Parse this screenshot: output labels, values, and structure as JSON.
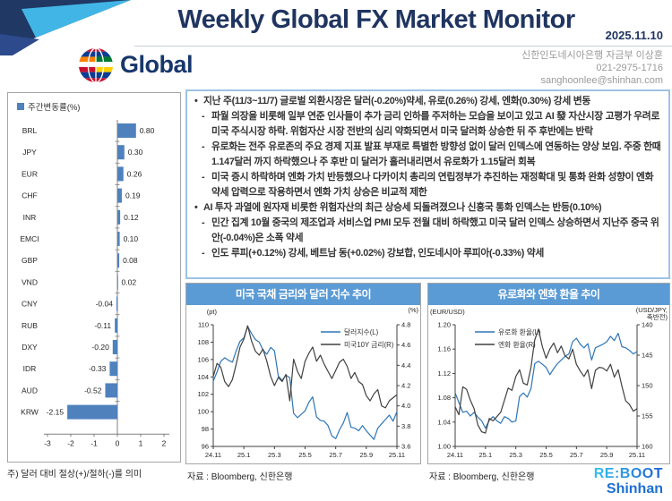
{
  "header": {
    "title": "Weekly Global FX Market Monitor",
    "date": "2025.11.10",
    "brand": "Global",
    "contact_lines": [
      "신한인도네시아은행 자금부 이상훈",
      "021-2975-1716",
      "sanghoonlee@shinhan.com"
    ]
  },
  "summary": {
    "bullets": [
      {
        "level": 1,
        "text": "지난 주(11/3~11/7) 글로벌 외환시장은 달러(-0.20%)약세, 유로(0.26%) 강세, 엔화(0.30%) 강세 변동"
      },
      {
        "level": 2,
        "text": "파월 의장을 비롯해 일부 연준 인사들이 추가 금리 인하를 주저하는 모습을 보이고 있고 AI 發 자산시장 고평가 우려로 미국 주식시장 하락. 위험자산 시장 전반의 심리 약화되면서 미국 달러화 상승한 뒤 주 후반에는 반락"
      },
      {
        "level": 2,
        "text": "유로화는 전주 유로존의 주요 경제 지표 발표 부재로 특별한 방향성 없이 달러 인덱스에 연동하는 양상 보임. 주중 한때 1.147달러 까지 하락했으나 주 후반 미 달러가 흘러내리면서 유로화가 1.15달러 회복"
      },
      {
        "level": 2,
        "text": "미국 증시 하락하며 엔화 가치 반등했으나 다카이치 총리의 연립정부가 추진하는 재정확대 및 통화 완화 성향이 엔화 약세 압력으로 작용하면서 엔화 가치 상승은 비교적 제한"
      },
      {
        "level": 1,
        "text": "AI 투자 과열에 원자재 비롯한 위험자산의 최근 상승세 되돌려졌으나 신흥국  통화 인덱스는 반등(0.10%)"
      },
      {
        "level": 2,
        "text": "민간 집계 10월 중국의 제조업과 서비스업 PMI 모두 전월 대비 하락했고 미국 달러 인덱스 상승하면서 지난주 중국 위안(-0.04%)은 소폭 약세"
      },
      {
        "level": 2,
        "text": "인도 루피(+0.12%) 강세, 베트남 동(+0.02%) 강보합, 인도네시아 루피아(-0.33%) 약세"
      }
    ]
  },
  "footer_logo": {
    "line1": "RE:BOOT",
    "line2": "Shinhan"
  },
  "colors": {
    "navy": "#1F3460",
    "header_band": "#5B9BD5",
    "bar_fill": "#4F81BD",
    "line_blue": "#2E75B6",
    "line_black": "#404040",
    "box_border": "#9DC3E6"
  },
  "chart_data": [
    {
      "type": "bar",
      "orientation": "horizontal",
      "legend": "주간변동률(%)",
      "note": "주) 달러 대비 절상(+)/절하(-)를 의미",
      "categories": [
        "BRL",
        "JPY",
        "EUR",
        "CHF",
        "INR",
        "EMCI",
        "GBP",
        "VND",
        "CNY",
        "RUB",
        "DXY",
        "IDR",
        "AUD",
        "KRW"
      ],
      "values": [
        0.8,
        0.3,
        0.26,
        0.19,
        0.12,
        0.1,
        0.08,
        0.02,
        -0.04,
        -0.11,
        -0.2,
        -0.33,
        -0.52,
        -2.15
      ],
      "value_labels": [
        "0.80",
        "0.30",
        "0.26",
        "0.19",
        "0.12",
        "0.10",
        "0.08",
        "0.02",
        "-0.04",
        "-0.11",
        "-0.20",
        "-0.33",
        "-0.52",
        "-2.15"
      ],
      "xlim": [
        -3,
        2
      ],
      "xtick_labels": [
        "-3",
        "-2",
        "-1",
        "0",
        "1",
        "2"
      ],
      "bar_color": "#4F81BD"
    },
    {
      "type": "line",
      "title": "미국 국채 금리와 달러 지수 추이",
      "source": "자료 : Bloomberg, 신한은행",
      "x_labels": [
        "24.11",
        "25.1",
        "25.3",
        "25.5",
        "25.7",
        "25.9",
        "25.11"
      ],
      "left_axis": {
        "unit_lines": [
          "(pt)"
        ],
        "min": 96,
        "max": 110,
        "tick_values": [
          96,
          98,
          100,
          102,
          104,
          106,
          108,
          110
        ],
        "tick_labels": [
          "96",
          "98",
          "100",
          "102",
          "104",
          "106",
          "108",
          "110"
        ],
        "reversed": false
      },
      "right_axis": {
        "unit_lines": [
          "(%)"
        ],
        "min": 3.6,
        "max": 4.8,
        "tick_values": [
          3.6,
          3.8,
          4.0,
          4.2,
          4.4,
          4.6,
          4.8
        ],
        "tick_labels": [
          "3.6",
          "3.8",
          "4.0",
          "4.2",
          "4.4",
          "4.6",
          "4.8"
        ],
        "reversed": false
      },
      "legend_pos": {
        "x": 150,
        "y": 30
      },
      "rmargin": 26,
      "series": [
        {
          "name": "달러지수(L)",
          "axis": "left",
          "color": "#2E75B6",
          "values": [
            103.5,
            104.6,
            105.8,
            106.2,
            105.9,
            105.7,
            107.0,
            108.1,
            108.5,
            109.8,
            109.0,
            108.3,
            108.0,
            107.1,
            106.6,
            107.4,
            107.0,
            104.1,
            103.6,
            104.2,
            103.9,
            99.8,
            99.3,
            99.7,
            100.1,
            101.1,
            101.7,
            99.4,
            99.0,
            98.9,
            98.4,
            97.2,
            96.9,
            97.9,
            98.7,
            99.9,
            98.2,
            98.1,
            97.8,
            98.4,
            97.8,
            97.3,
            96.8,
            98.1,
            98.6,
            99.1,
            99.6,
            98.9,
            100.0
          ]
        },
        {
          "name": "미국10Y 금리(R)",
          "axis": "right",
          "color": "#404040",
          "values": [
            4.29,
            4.42,
            4.38,
            4.24,
            4.19,
            4.26,
            4.41,
            4.58,
            4.66,
            4.79,
            4.64,
            4.54,
            4.5,
            4.56,
            4.44,
            4.29,
            4.2,
            4.28,
            4.24,
            4.31,
            4.05,
            4.46,
            4.34,
            4.27,
            4.44,
            4.52,
            4.58,
            4.44,
            4.5,
            4.41,
            4.34,
            4.27,
            4.35,
            4.43,
            4.46,
            4.39,
            4.27,
            4.33,
            4.24,
            4.21,
            4.1,
            4.05,
            4.12,
            4.16,
            4.0,
            3.98,
            4.05,
            4.08,
            4.11
          ]
        }
      ]
    },
    {
      "type": "line",
      "title": "유로화와 엔화 환율 추이",
      "source": "자료 : Bloomberg, 신한은행",
      "x_labels": [
        "24.11",
        "25.1",
        "25.3",
        "25.5",
        "25.7",
        "25.9",
        "25.11"
      ],
      "left_axis": {
        "unit_lines": [
          "(EUR/USD)"
        ],
        "min": 1.0,
        "max": 1.2,
        "tick_values": [
          1.0,
          1.04,
          1.08,
          1.12,
          1.16,
          1.2
        ],
        "tick_labels": [
          "1.00",
          "1.04",
          "1.08",
          "1.12",
          "1.16",
          "1.20"
        ],
        "reversed": false
      },
      "right_axis": {
        "unit_lines": [
          "(USD/JPY,",
          "축반전)"
        ],
        "min": 140,
        "max": 160,
        "tick_values": [
          140,
          145,
          150,
          155,
          160
        ],
        "tick_labels": [
          "140",
          "145",
          "150",
          "155",
          "160"
        ],
        "reversed": true
      },
      "legend_pos": {
        "x": 52,
        "y": 30
      },
      "rmargin": 36,
      "series": [
        {
          "name": "유로화 환율(L)",
          "axis": "left",
          "color": "#2E75B6",
          "values": [
            1.088,
            1.072,
            1.056,
            1.058,
            1.05,
            1.056,
            1.048,
            1.042,
            1.03,
            1.043,
            1.049,
            1.042,
            1.038,
            1.049,
            1.046,
            1.04,
            1.042,
            1.082,
            1.088,
            1.081,
            1.095,
            1.136,
            1.14,
            1.135,
            1.13,
            1.118,
            1.128,
            1.136,
            1.142,
            1.148,
            1.152,
            1.172,
            1.178,
            1.168,
            1.162,
            1.169,
            1.142,
            1.162,
            1.165,
            1.168,
            1.172,
            1.181,
            1.174,
            1.186,
            1.164,
            1.162,
            1.158,
            1.152,
            1.156
          ]
        },
        {
          "name": "엔화 환율(R)",
          "axis": "right",
          "color": "#404040",
          "values": [
            153.5,
            154.8,
            150.2,
            150.6,
            152.4,
            153.8,
            156.5,
            157.6,
            157.8,
            155.4,
            155.8,
            155.1,
            154.4,
            152.4,
            150.4,
            150.8,
            148.5,
            147.4,
            149.6,
            149.9,
            147.0,
            142.5,
            140.7,
            143.6,
            145.5,
            144.0,
            143.0,
            144.6,
            143.5,
            145.1,
            145.6,
            144.0,
            146.5,
            147.6,
            148.5,
            147.4,
            150.5,
            147.5,
            147.0,
            147.1,
            147.6,
            146.5,
            148.6,
            147.4,
            150.1,
            152.5,
            153.1,
            154.2,
            153.8
          ]
        }
      ]
    }
  ]
}
